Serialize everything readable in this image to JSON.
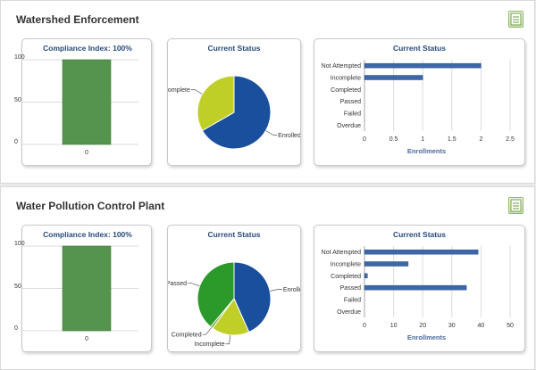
{
  "panels": [
    {
      "title": "Watershed Enforcement",
      "compliance": {
        "title": "Compliance Index: 100%",
        "value": 100,
        "y_ticks": [
          "100",
          "50",
          "0"
        ],
        "x_label": "0"
      },
      "pie": {
        "title": "Current Status",
        "slices": [
          {
            "label": "Enrolled",
            "value": 2,
            "color": "#1a4f9e"
          },
          {
            "label": "Incomplete",
            "value": 1,
            "color": "#bfcf27"
          }
        ]
      },
      "bar": {
        "title": "Current Status",
        "categories": [
          "Not Attempted",
          "Incomplete",
          "Completed",
          "Passed",
          "Failed",
          "Overdue"
        ],
        "values": [
          2,
          1,
          0,
          0,
          0,
          0
        ],
        "x_ticks": [
          "0",
          "0.5",
          "1",
          "1.5",
          "2",
          "2.5"
        ],
        "x_max": 2.5,
        "xlabel": "Enrollments"
      }
    },
    {
      "title": "Water Pollution Control Plant",
      "compliance": {
        "title": "Compliance Index: 100%",
        "value": 100,
        "y_ticks": [
          "100",
          "50",
          "0"
        ],
        "x_label": "0"
      },
      "pie": {
        "title": "Current Status",
        "slices": [
          {
            "label": "Enrolled",
            "value": 39,
            "color": "#1a4f9e"
          },
          {
            "label": "Incomplete",
            "value": 15,
            "color": "#bfcf27"
          },
          {
            "label": "Completed",
            "value": 1,
            "color": "#7a9e3a"
          },
          {
            "label": "Passed",
            "value": 35,
            "color": "#2b9a2b"
          }
        ]
      },
      "bar": {
        "title": "Current Status",
        "categories": [
          "Not Attempted",
          "Incomplete",
          "Completed",
          "Passed",
          "Failed",
          "Overdue"
        ],
        "values": [
          39,
          15,
          1,
          35,
          0,
          0
        ],
        "x_ticks": [
          "0",
          "10",
          "20",
          "30",
          "40",
          "50"
        ],
        "x_max": 50,
        "xlabel": "Enrollments"
      }
    }
  ],
  "colors": {
    "compliance_bar": "#54944f",
    "bar_fill": "#3c67a9",
    "grid": "#dcdcdc"
  }
}
